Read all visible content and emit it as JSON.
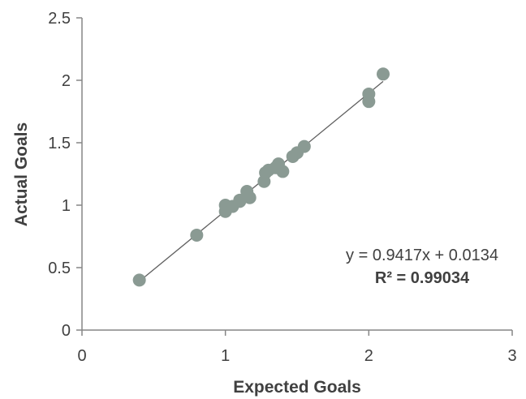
{
  "chart_data": {
    "type": "scatter",
    "title": "",
    "xlabel": "Expected Goals",
    "ylabel": "Actual Goals",
    "xlim": [
      0,
      3
    ],
    "ylim": [
      0,
      2.5
    ],
    "x_ticks": [
      "0",
      "1",
      "2",
      "3"
    ],
    "y_ticks": [
      "0",
      "0.5",
      "1",
      "1.5",
      "2",
      "2.5"
    ],
    "grid": false,
    "legend": "none",
    "point_color": "#8a9a93",
    "line_color": "#5f5f5f",
    "series": [
      {
        "points": [
          [
            0.4,
            0.4
          ],
          [
            0.8,
            0.76
          ],
          [
            1.0,
            0.95
          ],
          [
            1.0,
            1.0
          ],
          [
            1.05,
            0.99
          ],
          [
            1.1,
            1.04
          ],
          [
            1.1,
            1.03
          ],
          [
            1.15,
            1.11
          ],
          [
            1.17,
            1.06
          ],
          [
            1.27,
            1.19
          ],
          [
            1.28,
            1.26
          ],
          [
            1.3,
            1.28
          ],
          [
            1.35,
            1.3
          ],
          [
            1.37,
            1.33
          ],
          [
            1.4,
            1.27
          ],
          [
            1.47,
            1.39
          ],
          [
            1.5,
            1.42
          ],
          [
            1.55,
            1.47
          ],
          [
            2.0,
            1.89
          ],
          [
            2.0,
            1.83
          ],
          [
            2.1,
            2.05
          ]
        ]
      }
    ],
    "trendline": {
      "slope": 0.9417,
      "intercept": 0.0134,
      "x_range": [
        0.4,
        2.1
      ],
      "equation": "y = 0.9417x + 0.0134",
      "r_squared": "R² = 0.99034"
    }
  }
}
